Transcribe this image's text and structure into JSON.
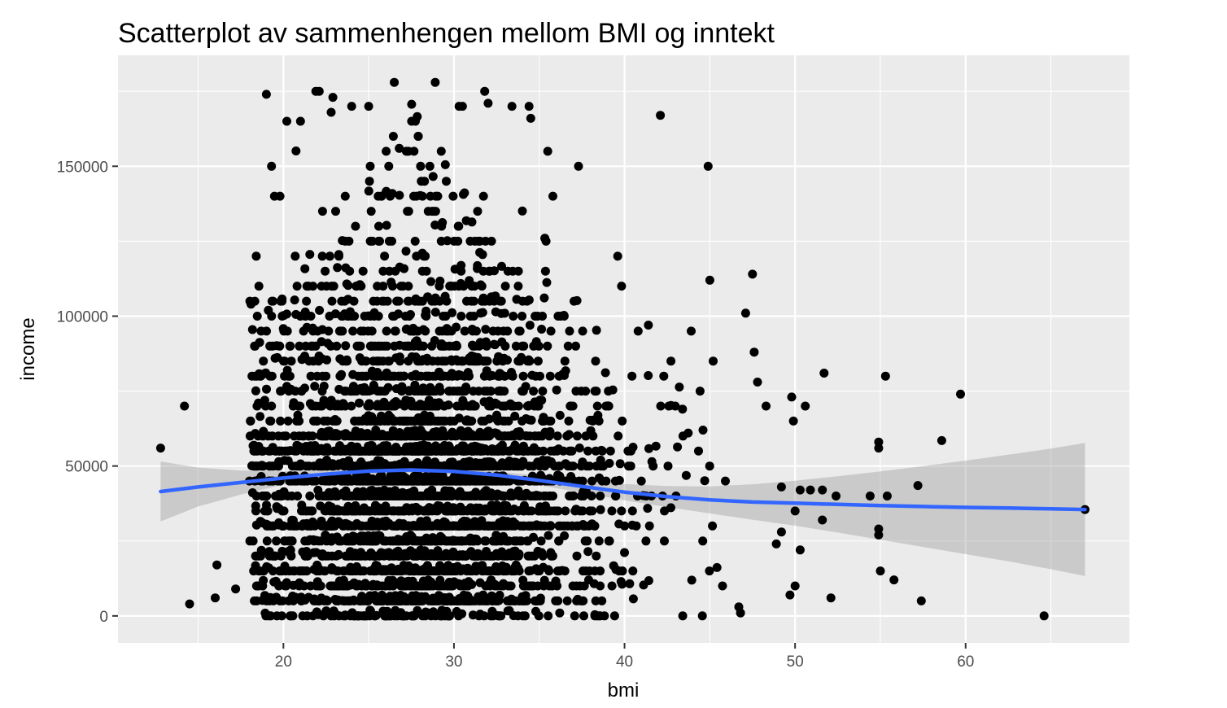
{
  "chart_data": {
    "type": "scatter",
    "title": "Scatterplot av sammenhengen mellom BMI og inntekt",
    "xlabel": "bmi",
    "ylabel": "income",
    "xlim": [
      10.3,
      69.6
    ],
    "ylim": [
      -9000,
      187000
    ],
    "x_ticks": [
      20,
      30,
      40,
      50,
      60
    ],
    "y_ticks": [
      0,
      50000,
      100000,
      150000
    ],
    "x_tick_labels": [
      "20",
      "30",
      "40",
      "50",
      "60"
    ],
    "y_tick_labels": [
      "0",
      "50000",
      "100000",
      "150000"
    ],
    "grid": true,
    "point_color": "#000000",
    "panel_color": "#ebebeb",
    "smooth_color": "#3366ff",
    "ribbon_color": "#999999",
    "smooth": {
      "method": "loess",
      "x": [
        12.8,
        15,
        17.5,
        20,
        22.5,
        25,
        27.5,
        30,
        32.5,
        35,
        37.5,
        40,
        42.5,
        45,
        47.5,
        50,
        52.5,
        55,
        57.5,
        60,
        62.5,
        65,
        67
      ],
      "y": [
        41500,
        43000,
        44500,
        46000,
        47300,
        48300,
        48700,
        48200,
        47000,
        45200,
        43200,
        41300,
        39800,
        38700,
        38000,
        37600,
        37200,
        36800,
        36500,
        36200,
        36000,
        35700,
        35500
      ],
      "ymin": [
        31500,
        36500,
        40500,
        43800,
        45800,
        47100,
        47700,
        47200,
        45800,
        43600,
        41100,
        38600,
        36300,
        34200,
        32100,
        30100,
        27800,
        25400,
        23000,
        20600,
        18200,
        15600,
        13300
      ],
      "ymax": [
        51500,
        49500,
        48500,
        48200,
        48800,
        49500,
        49700,
        49200,
        48200,
        46800,
        45300,
        44000,
        43300,
        43200,
        43900,
        45100,
        46600,
        48200,
        50000,
        51800,
        53800,
        55800,
        57700
      ]
    },
    "points": [
      [
        12.8,
        56000
      ],
      [
        14.2,
        70000
      ],
      [
        14.5,
        4000
      ],
      [
        16.0,
        6000
      ],
      [
        16.1,
        17000
      ],
      [
        17.2,
        9000
      ],
      [
        18.1,
        104000
      ],
      [
        19.0,
        174000
      ],
      [
        19.3,
        150000
      ],
      [
        19.8,
        140000
      ],
      [
        20.2,
        165000
      ],
      [
        21.0,
        165000
      ],
      [
        21.9,
        175000
      ],
      [
        22.1,
        175000
      ],
      [
        22.8,
        168000
      ],
      [
        22.9,
        173000
      ],
      [
        24.0,
        170000
      ],
      [
        25.0,
        170000
      ],
      [
        26.5,
        178000
      ],
      [
        28.9,
        178000
      ],
      [
        30.3,
        170000
      ],
      [
        30.5,
        170000
      ],
      [
        31.8,
        175000
      ],
      [
        32.0,
        171000
      ],
      [
        33.4,
        170000
      ],
      [
        34.4,
        170000
      ],
      [
        34.5,
        166000
      ],
      [
        35.5,
        155000
      ],
      [
        35.8,
        140000
      ],
      [
        37.3,
        150000
      ],
      [
        39.6,
        120000
      ],
      [
        42.1,
        167000
      ],
      [
        44.9,
        150000
      ],
      [
        45.0,
        112000
      ],
      [
        47.5,
        114000
      ],
      [
        47.1,
        101000
      ],
      [
        45.2,
        85000
      ],
      [
        47.6,
        88000
      ],
      [
        47.8,
        78000
      ],
      [
        48.3,
        70000
      ],
      [
        49.8,
        73000
      ],
      [
        49.9,
        65000
      ],
      [
        50.6,
        70000
      ],
      [
        51.7,
        81000
      ],
      [
        55.3,
        80000
      ],
      [
        59.7,
        74000
      ],
      [
        58.6,
        58500
      ],
      [
        54.9,
        58000
      ],
      [
        54.9,
        56000
      ],
      [
        57.2,
        43500
      ],
      [
        55.4,
        40000
      ],
      [
        54.4,
        40000
      ],
      [
        52.4,
        40000
      ],
      [
        51.6,
        42000
      ],
      [
        51.6,
        32000
      ],
      [
        50.3,
        42000
      ],
      [
        50.9,
        42000
      ],
      [
        49.2,
        43000
      ],
      [
        52.1,
        6000
      ],
      [
        55.0,
        15000
      ],
      [
        54.9,
        29000
      ],
      [
        54.9,
        27000
      ],
      [
        55.8,
        12000
      ],
      [
        57.4,
        5000
      ],
      [
        64.6,
        0
      ],
      [
        67.0,
        35500
      ],
      [
        46.8,
        1000
      ],
      [
        46.7,
        3000
      ],
      [
        49.7,
        7000
      ],
      [
        50.0,
        10000
      ],
      [
        48.9,
        24000
      ],
      [
        49.2,
        28000
      ],
      [
        50.0,
        35000
      ],
      [
        50.3,
        22000
      ],
      [
        40.8,
        95000
      ],
      [
        41.4,
        97000
      ],
      [
        42.3,
        80000
      ],
      [
        43.4,
        69000
      ],
      [
        44.6,
        62000
      ],
      [
        37.9,
        12000
      ],
      [
        36.2,
        1000
      ],
      [
        34.8,
        1500
      ]
    ]
  }
}
